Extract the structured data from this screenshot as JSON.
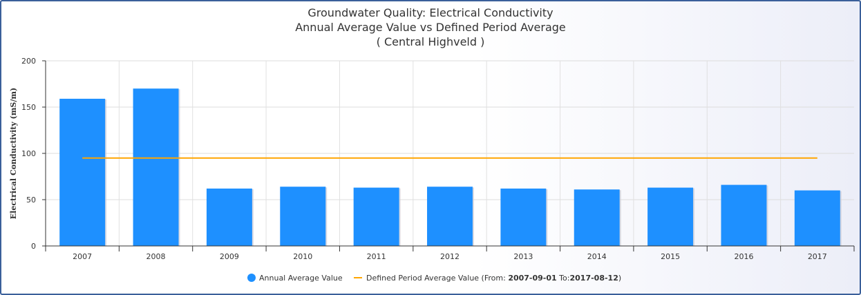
{
  "chart_data": {
    "type": "bar",
    "title": [
      "Groundwater Quality: Electrical Conductivity",
      "Annual Average Value vs Defined Period Average",
      "( Central Highveld )"
    ],
    "ylabel": "Electrical Conductivity (mS/m)",
    "xlabel": "",
    "ylim": [
      0,
      200
    ],
    "yticks": [
      0,
      50,
      100,
      150,
      200
    ],
    "grid": true,
    "categories": [
      "2007",
      "2008",
      "2009",
      "2010",
      "2011",
      "2012",
      "2013",
      "2014",
      "2015",
      "2016",
      "2017"
    ],
    "series": [
      {
        "name": "Annual Average Value",
        "type": "bar",
        "color": "#1e90ff",
        "values": [
          159,
          170,
          62,
          64,
          63,
          64,
          62,
          61,
          63,
          66,
          60
        ]
      },
      {
        "name": "Defined Period Average Value",
        "type": "line",
        "color": "#ffa500",
        "value": 95
      }
    ],
    "legend": {
      "position": "bottom",
      "bar_label": "Annual Average Value",
      "line_label_prefix": "Defined Period Average Value (From: ",
      "line_label_from": "2007-09-01",
      "line_label_mid": " To:",
      "line_label_to": "2017-08-12",
      "line_label_suffix": ")"
    }
  }
}
